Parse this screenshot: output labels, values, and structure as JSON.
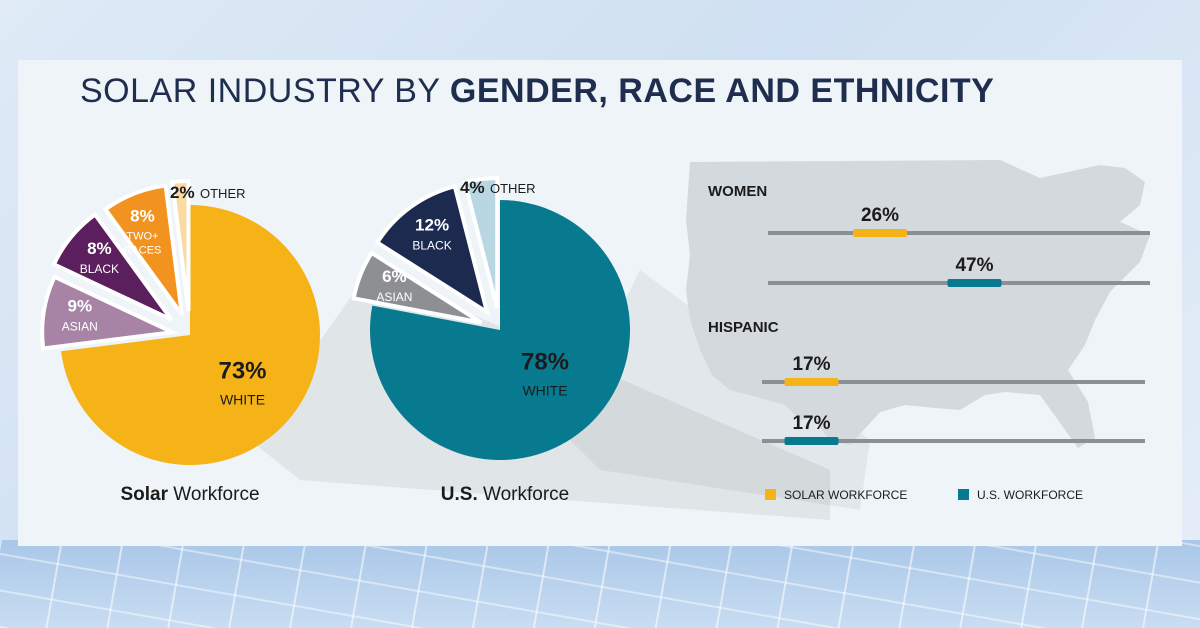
{
  "title": {
    "light": "SOLAR INDUSTRY BY",
    "bold": "GENDER, RACE AND ETHNICITY"
  },
  "chart_data": [
    {
      "type": "pie",
      "caption_bold": "Solar",
      "caption_rest": "Workforce",
      "slices": [
        {
          "pct": "73%",
          "value": 73,
          "label": "WHITE",
          "color": "#f5b318"
        },
        {
          "pct": "9%",
          "value": 9,
          "label": "ASIAN",
          "color": "#a784a6"
        },
        {
          "pct": "8%",
          "value": 8,
          "label": "BLACK",
          "color": "#5b1f5e"
        },
        {
          "pct": "8%",
          "value": 8,
          "label_lines": [
            "TWO+",
            "RACES"
          ],
          "color": "#f2931f"
        },
        {
          "pct": "2%",
          "value": 2,
          "label": "OTHER",
          "color": "#fad9a2"
        }
      ]
    },
    {
      "type": "pie",
      "caption_bold": "U.S.",
      "caption_rest": "Workforce",
      "slices": [
        {
          "pct": "78%",
          "value": 78,
          "label": "WHITE",
          "color": "#087a8f"
        },
        {
          "pct": "6%",
          "value": 6,
          "label": "ASIAN",
          "color": "#8e8f93"
        },
        {
          "pct": "12%",
          "value": 12,
          "label": "BLACK",
          "color": "#1c2a4f"
        },
        {
          "pct": "4%",
          "value": 4,
          "label": "OTHER",
          "color": "#b9d7e2"
        }
      ]
    },
    {
      "type": "bar",
      "groups": [
        {
          "label": "WOMEN",
          "bars": [
            {
              "series": "SOLAR WORKFORCE",
              "pct": "26%",
              "value": 26
            },
            {
              "series": "U.S. WORKFORCE",
              "pct": "47%",
              "value": 47
            }
          ]
        },
        {
          "label": "HISPANIC",
          "bars": [
            {
              "series": "SOLAR WORKFORCE",
              "pct": "17%",
              "value": 17
            },
            {
              "series": "U.S. WORKFORCE",
              "pct": "17%",
              "value": 17
            }
          ]
        }
      ],
      "legend": [
        {
          "label": "SOLAR WORKFORCE",
          "color": "#f5b318"
        },
        {
          "label": "U.S. WORKFORCE",
          "color": "#087a8f"
        }
      ]
    }
  ]
}
